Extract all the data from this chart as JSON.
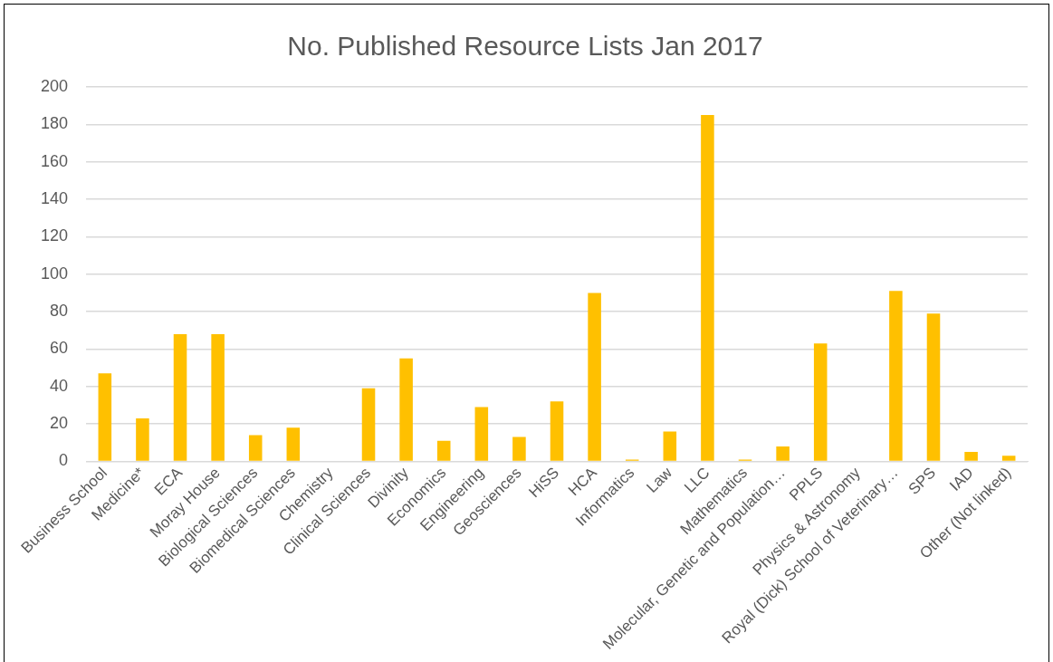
{
  "chart_data": {
    "type": "bar",
    "title": "No. Published Resource Lists Jan 2017",
    "categories": [
      "Business School",
      "Medicine*",
      "ECA",
      "Moray House",
      "Biological Sciences",
      "Biomedical Sciences",
      "Chemistry",
      "Clinical Sciences",
      "Divinity",
      "Economics",
      "Engineering",
      "Geosciences",
      "HiSS",
      "HCA",
      "Informatics",
      "Law",
      "LLC",
      "Mathematics",
      "Molecular, Genetic and Population…",
      "PPLS",
      "Physics & Astronomy",
      "Royal (Dick) School of Veterinary…",
      "SPS",
      "IAD",
      "Other (Not linked)"
    ],
    "values": [
      47,
      23,
      68,
      68,
      14,
      18,
      0,
      39,
      55,
      11,
      29,
      13,
      32,
      90,
      1,
      16,
      185,
      1,
      8,
      63,
      0,
      91,
      79,
      5,
      3
    ],
    "color": "#ffc000",
    "ylim": [
      0,
      200
    ],
    "yticks": [
      0,
      20,
      40,
      60,
      80,
      100,
      120,
      140,
      160,
      180,
      200
    ],
    "grid": "y",
    "legend": false
  }
}
